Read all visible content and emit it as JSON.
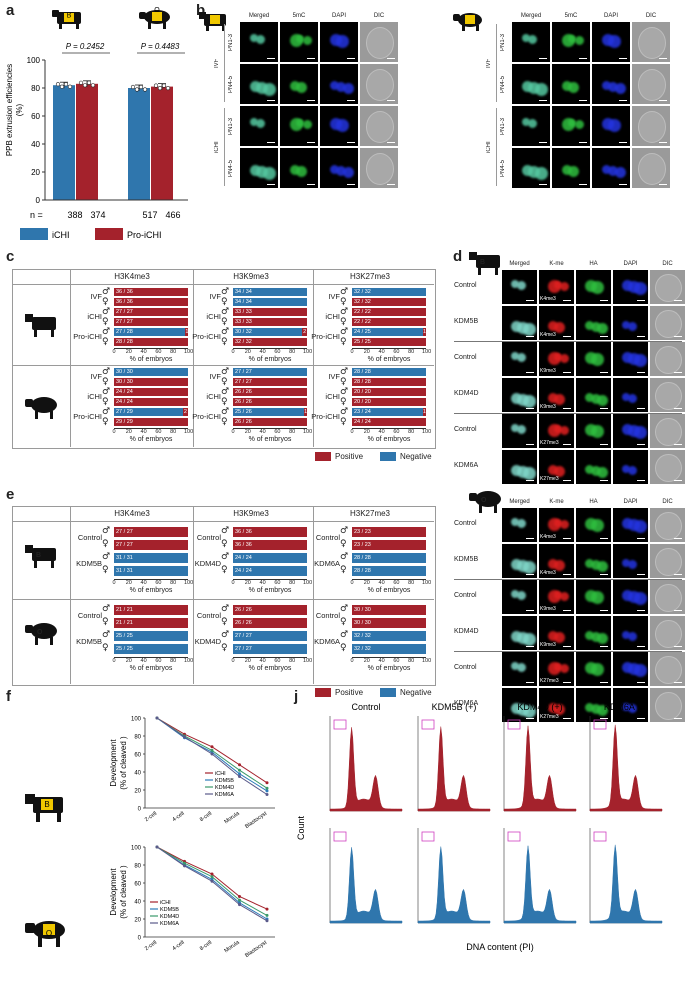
{
  "panels": {
    "a": "a",
    "b": "b",
    "c": "c",
    "d": "d",
    "e": "e",
    "f": "f",
    "j": "j"
  },
  "animals": {
    "bovine": "B",
    "ovine": "O"
  },
  "panel_a": {
    "ylabel_1": "PPB extrusion efficiencies",
    "ylabel_2": "(%)",
    "p1": "P = 0.2452",
    "p2": "P = 0.4483",
    "n_label": "n =",
    "n_values": [
      "388",
      "374",
      "517",
      "466"
    ],
    "yticks": [
      "0",
      "20",
      "40",
      "60",
      "80",
      "100"
    ],
    "legend": [
      "iCHI",
      "Pro-iCHI"
    ],
    "colors": {
      "iCHI": "#2f76ad",
      "Pro-iCHI": "#a4222c"
    }
  },
  "chart_data": [
    {
      "type": "bar",
      "categories": [
        "B",
        "O"
      ],
      "series": [
        {
          "name": "iCHI",
          "values": [
            82,
            80
          ]
        },
        {
          "name": "Pro-iCHI",
          "values": [
            83,
            81
          ]
        }
      ],
      "ylabel": "PPB extrusion efficiencies (%)",
      "ylim": [
        0,
        100
      ]
    },
    {
      "type": "line",
      "categories": [
        "2-cell",
        "4-cell",
        "8-cell",
        "Morula",
        "Blastocyst"
      ],
      "series": [
        {
          "name": "iCHI",
          "values": [
            100,
            82,
            68,
            48,
            28
          ]
        },
        {
          "name": "KDM5B",
          "values": [
            100,
            78,
            62,
            38,
            19
          ]
        },
        {
          "name": "KDM4D",
          "values": [
            100,
            80,
            64,
            42,
            22
          ]
        },
        {
          "name": "KDM6A",
          "values": [
            100,
            79,
            60,
            35,
            15
          ]
        }
      ],
      "ylabel": "Development (% of cleaved )",
      "ylim": [
        0,
        100
      ]
    },
    {
      "type": "line",
      "categories": [
        "2-cell",
        "4-cell",
        "8-cell",
        "Morula",
        "Blastocyst"
      ],
      "series": [
        {
          "name": "iCHI",
          "values": [
            100,
            84,
            70,
            45,
            31
          ]
        },
        {
          "name": "KDM5B",
          "values": [
            100,
            80,
            64,
            38,
            20
          ]
        },
        {
          "name": "KDM4D",
          "values": [
            100,
            82,
            67,
            41,
            24
          ]
        },
        {
          "name": "KDM6A",
          "values": [
            100,
            79,
            62,
            36,
            18
          ]
        }
      ],
      "ylabel": "Development (% of cleaved )",
      "ylim": [
        0,
        100
      ]
    }
  ],
  "panel_b": {
    "cols": [
      "Merged",
      "5mC",
      "DAPI",
      "DIC"
    ],
    "rows": [
      "PN1-3",
      "PN4-5",
      "PN1-3",
      "PN4-5"
    ],
    "groups": [
      "IVF",
      "iCHI"
    ]
  },
  "panel_c": {
    "headers": [
      "H3K4me3",
      "H3K9me3",
      "H3K27me3"
    ],
    "rows": [
      "IVF",
      "iCHI",
      "Pro-iCHI"
    ],
    "xlabel": "% of embryos",
    "xticks": [
      "0",
      "20",
      "40",
      "60",
      "80",
      "100"
    ],
    "bovine": [
      [
        "36 / 36",
        "36 / 36",
        "27 / 27",
        "27 / 27",
        "27 / 28",
        "28 / 28"
      ],
      [
        "34 / 34",
        "34 / 34",
        "33 / 33",
        "33 / 33",
        "30 / 32",
        "32 / 32"
      ],
      [
        "32 / 32",
        "32 / 32",
        "22 / 22",
        "22 / 22",
        "24 / 25",
        "25 / 25"
      ]
    ],
    "ovine": [
      [
        "30 / 30",
        "30 / 30",
        "24 / 24",
        "24 / 24",
        "27 / 29",
        "29 / 29"
      ],
      [
        "27 / 27",
        "27 / 27",
        "26 / 26",
        "26 / 26",
        "25 / 26",
        "26 / 26"
      ],
      [
        "28 / 28",
        "28 / 28",
        "20 / 20",
        "20 / 20",
        "23 / 24",
        "24 / 24"
      ]
    ],
    "remainders_bov": [
      "",
      "",
      "",
      "",
      "1",
      "",
      "",
      "",
      "",
      "",
      "2",
      "",
      "",
      "",
      "",
      "",
      "1",
      ""
    ],
    "remainders_ov": [
      "",
      "",
      "",
      "",
      "2",
      "",
      "",
      "",
      "",
      "",
      "1",
      "",
      "",
      "",
      "",
      "",
      "1",
      ""
    ],
    "legend": [
      "Positive",
      "Negative"
    ]
  },
  "panel_d": {
    "cols": [
      "Merged",
      "K-me",
      "HA",
      "DAPI",
      "DIC"
    ],
    "rows": [
      "Control",
      "KDM5B",
      "Control",
      "KDM4D",
      "Control",
      "KDM6A"
    ],
    "marks": [
      "K4me3",
      "K4me3",
      "K9me3",
      "K9me3",
      "K27me3",
      "K27me3"
    ]
  },
  "panel_e": {
    "headers": [
      "H3K4me3",
      "H3K9me3",
      "H3K27me3"
    ],
    "groups": [
      [
        "Control",
        "KDM5B"
      ],
      [
        "Control",
        "KDM4D"
      ],
      [
        "Control",
        "KDM6A"
      ]
    ],
    "bovine": [
      [
        "27 / 27",
        "27 / 27",
        "31 / 31",
        "31 / 31"
      ],
      [
        "36 / 36",
        "36 / 36",
        "24 / 24",
        "24 / 24"
      ],
      [
        "23 / 23",
        "23 / 23",
        "28 / 28",
        "28 / 28"
      ]
    ],
    "ovine": [
      [
        "21 / 21",
        "21 / 21",
        "25 / 25",
        "25 / 25"
      ],
      [
        "26 / 26",
        "26 / 26",
        "27 / 27",
        "27 / 27"
      ],
      [
        "30 / 30",
        "30 / 30",
        "32 / 32",
        "32 / 32"
      ]
    ],
    "xlabel": "% of embryos",
    "xticks": [
      "0",
      "20",
      "40",
      "60",
      "80",
      "100"
    ],
    "legend": [
      "Positive",
      "Negative"
    ]
  },
  "panel_f": {
    "ylabel_1": "Development",
    "ylabel_2": "(% of cleaved )",
    "yticks": [
      "0",
      "20",
      "40",
      "60",
      "80",
      "100"
    ],
    "xticks": [
      "2-cell",
      "4-cell",
      "8-cell",
      "Morula",
      "Blastocyst"
    ],
    "legend": [
      "iCHI",
      "KDM5B",
      "KDM4D",
      "KDM6A"
    ],
    "colors": [
      "#a4222c",
      "#2b7bb9",
      "#3a9a6a",
      "#5a5a8a"
    ]
  },
  "panel_j": {
    "cols": [
      "Control",
      "KDM5B (+)",
      "KDM4D (+)",
      "KDM6A (+)"
    ],
    "ylabel": "Count",
    "xlabel": "DNA content (PI)"
  }
}
